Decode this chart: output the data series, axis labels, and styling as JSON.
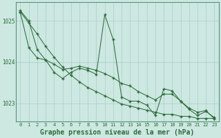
{
  "title": "Graphe pression niveau de la mer (hPa)",
  "background_color": "#cce8e0",
  "grid_color": "#aacccc",
  "line_color": "#2d6b3c",
  "x_min": -0.5,
  "x_max": 23.5,
  "y_min": 1022.55,
  "y_max": 1025.45,
  "y_ticks": [
    1023,
    1024,
    1025
  ],
  "x_hours": [
    0,
    1,
    2,
    3,
    4,
    5,
    6,
    7,
    8,
    9,
    10,
    11,
    12,
    13,
    14,
    15,
    16,
    17,
    18,
    19,
    20,
    21,
    22,
    23
  ],
  "values1": [
    1025.25,
    1025.0,
    1024.3,
    1024.05,
    1023.75,
    1023.6,
    1023.75,
    1023.85,
    1023.8,
    1023.7,
    1025.15,
    1024.55,
    1023.15,
    1023.05,
    1023.05,
    1022.95,
    1022.7,
    1023.35,
    1023.3,
    1023.05,
    1022.85,
    1022.7,
    1022.8,
    1022.65
  ],
  "values2": [
    1025.2,
    1024.35,
    1024.1,
    1024.05,
    1023.95,
    1023.82,
    1023.85,
    1023.9,
    1023.85,
    1023.8,
    1023.72,
    1023.62,
    1023.48,
    1023.42,
    1023.28,
    1023.18,
    1023.08,
    1023.22,
    1023.22,
    1023.05,
    1022.88,
    1022.78,
    1022.82,
    1022.62
  ],
  "values3": [
    1025.22,
    1024.95,
    1024.68,
    1024.38,
    1024.12,
    1023.88,
    1023.68,
    1023.52,
    1023.38,
    1023.28,
    1023.18,
    1023.08,
    1022.98,
    1022.93,
    1022.88,
    1022.83,
    1022.78,
    1022.73,
    1022.73,
    1022.68,
    1022.68,
    1022.63,
    1022.63,
    1022.63
  ],
  "spine_color": "#5a9080",
  "tick_fontsize": 5.5,
  "label_fontsize": 7.0
}
